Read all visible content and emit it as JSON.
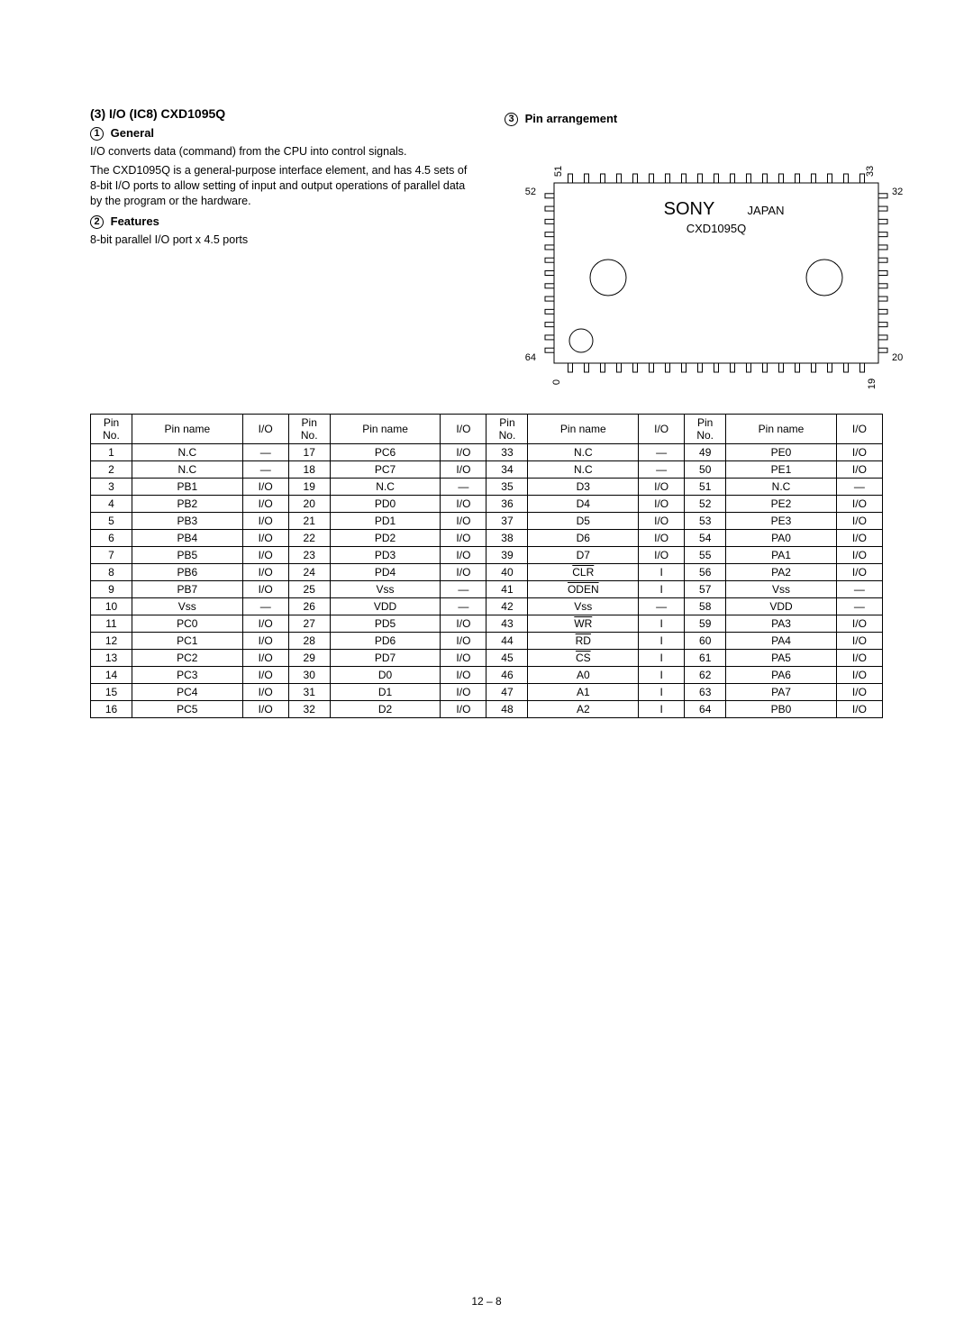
{
  "header": {
    "title": "(3) I/O (IC8) CXD1095Q",
    "general_label": "General",
    "general_text_1": "I/O converts data (command) from the CPU into control signals.",
    "general_text_2": "The CXD1095Q is a general-purpose interface element, and has 4.5 sets of 8-bit I/O ports to allow setting of input and output operations of parallel data by the program or the hardware.",
    "features_label": "Features",
    "features_text": "8-bit parallel I/O port x 4.5 ports",
    "pin_arr_label": "Pin arrangement"
  },
  "chip": {
    "brand": "SONY",
    "country": "JAPAN",
    "part": "CXD1095Q",
    "top_left_pin": "51",
    "top_right_pin": "33",
    "left_top_pin": "52",
    "left_bottom_pin": "64",
    "right_top_pin": "32",
    "right_bottom_pin": "20",
    "bottom_left_pin": "0",
    "bottom_right_pin": "19",
    "package_width": 420,
    "body_color": "#ffffff",
    "line_color": "#000000",
    "pin_count_side": 19,
    "pin_count_tb": 19,
    "pin_len": 10,
    "pin_w": 5,
    "body_inset": 30
  },
  "table": {
    "headers": [
      "Pin No.",
      "Pin name",
      "I/O",
      "Pin No.",
      "Pin name",
      "I/O",
      "Pin No.",
      "Pin name",
      "I/O",
      "Pin No.",
      "Pin name",
      "I/O"
    ],
    "col_widths_pct": [
      4.5,
      12,
      5,
      4.5,
      12,
      5,
      4.5,
      12,
      5,
      4.5,
      12,
      5
    ],
    "rows": [
      [
        "1",
        "N.C",
        "—",
        "17",
        "PC6",
        "I/O",
        "33",
        "N.C",
        "—",
        "49",
        "PE0",
        "I/O"
      ],
      [
        "2",
        "N.C",
        "—",
        "18",
        "PC7",
        "I/O",
        "34",
        "N.C",
        "—",
        "50",
        "PE1",
        "I/O"
      ],
      [
        "3",
        "PB1",
        "I/O",
        "19",
        "N.C",
        "—",
        "35",
        "D3",
        "I/O",
        "51",
        "N.C",
        "—"
      ],
      [
        "4",
        "PB2",
        "I/O",
        "20",
        "PD0",
        "I/O",
        "36",
        "D4",
        "I/O",
        "52",
        "PE2",
        "I/O"
      ],
      [
        "5",
        "PB3",
        "I/O",
        "21",
        "PD1",
        "I/O",
        "37",
        "D5",
        "I/O",
        "53",
        "PE3",
        "I/O"
      ],
      [
        "6",
        "PB4",
        "I/O",
        "22",
        "PD2",
        "I/O",
        "38",
        "D6",
        "I/O",
        "54",
        "PA0",
        "I/O"
      ],
      [
        "7",
        "PB5",
        "I/O",
        "23",
        "PD3",
        "I/O",
        "39",
        "D7",
        "I/O",
        "55",
        "PA1",
        "I/O"
      ],
      [
        "8",
        "PB6",
        "I/O",
        "24",
        "PD4",
        "I/O",
        "40",
        {
          "text": "CLR",
          "overline": true
        },
        "I",
        "56",
        "PA2",
        "I/O"
      ],
      [
        "9",
        "PB7",
        "I/O",
        "25",
        "Vss",
        "—",
        "41",
        {
          "text": "ODEN",
          "overline": true
        },
        "I",
        "57",
        "Vss",
        "—"
      ],
      [
        "10",
        "Vss",
        "—",
        "26",
        "VDD",
        "—",
        "42",
        "Vss",
        "—",
        "58",
        "VDD",
        "—"
      ],
      [
        "11",
        "PC0",
        "I/O",
        "27",
        "PD5",
        "I/O",
        "43",
        {
          "text": "WR",
          "overline": true
        },
        "I",
        "59",
        "PA3",
        "I/O"
      ],
      [
        "12",
        "PC1",
        "I/O",
        "28",
        "PD6",
        "I/O",
        "44",
        {
          "text": "RD",
          "overline": true
        },
        "I",
        "60",
        "PA4",
        "I/O"
      ],
      [
        "13",
        "PC2",
        "I/O",
        "29",
        "PD7",
        "I/O",
        "45",
        {
          "text": "CS",
          "overline": true
        },
        "I",
        "61",
        "PA5",
        "I/O"
      ],
      [
        "14",
        "PC3",
        "I/O",
        "30",
        "D0",
        "I/O",
        "46",
        "A0",
        "I",
        "62",
        "PA6",
        "I/O"
      ],
      [
        "15",
        "PC4",
        "I/O",
        "31",
        "D1",
        "I/O",
        "47",
        "A1",
        "I",
        "63",
        "PA7",
        "I/O"
      ],
      [
        "16",
        "PC5",
        "I/O",
        "32",
        "D2",
        "I/O",
        "48",
        "A2",
        "I",
        "64",
        "PB0",
        "I/O"
      ]
    ]
  },
  "page_number": "12 – 8"
}
